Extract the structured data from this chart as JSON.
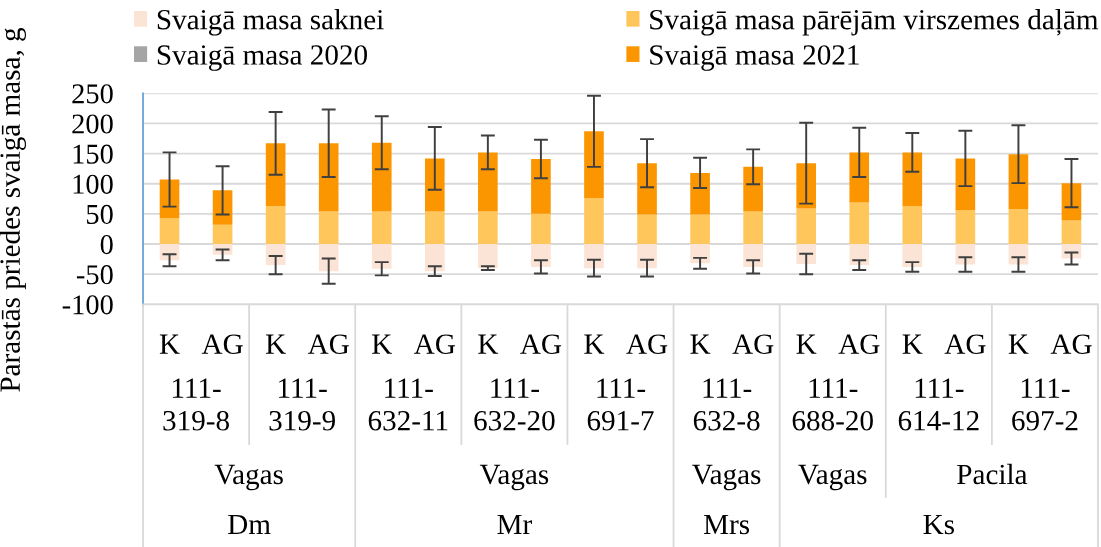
{
  "chart_data": {
    "type": "bar",
    "stacked": true,
    "ylabel": "Parastās priedes svaigā masa, g",
    "categories": [
      "K",
      "AG",
      "K",
      "AG",
      "K",
      "AG",
      "K",
      "AG",
      "K",
      "AG",
      "K",
      "AG",
      "K",
      "AG",
      "K",
      "AG",
      "K",
      "AG"
    ],
    "series": [
      {
        "name": "Svaigā masa saknei",
        "color": "#fbe4d5",
        "values": [
          -27,
          -18,
          -35,
          -45,
          -41,
          -45,
          -40,
          -38,
          -40,
          -40,
          -32,
          -38,
          -33,
          -35,
          -38,
          -34,
          -34,
          -24
        ],
        "errors": [
          10,
          9,
          15,
          21,
          11,
          8,
          3,
          11,
          14,
          14,
          9,
          11,
          17,
          8,
          8,
          12,
          12,
          10
        ]
      },
      {
        "name": "Svaigā masa pārējām virszemes daļām",
        "color": "#ffc65c",
        "values": [
          43,
          32,
          63,
          54,
          54,
          54,
          54,
          50,
          76,
          49,
          49,
          54,
          59,
          69,
          63,
          56,
          58,
          39
        ]
      },
      {
        "name": "Svaigā masa 2020",
        "color": "#a5a5a5",
        "values": [
          null,
          null,
          null,
          null,
          null,
          null,
          null,
          null,
          null,
          null,
          null,
          null,
          null,
          null,
          null,
          null,
          null,
          null
        ]
      },
      {
        "name": "Svaigā masa 2021",
        "color": "#fb9600",
        "values": [
          64,
          57,
          104,
          113,
          114,
          88,
          98,
          91,
          111,
          85,
          69,
          74,
          75,
          83,
          89,
          86,
          91,
          62
        ],
        "errors": [
          45,
          40,
          52,
          56,
          44,
          52,
          28,
          32,
          59,
          40,
          25,
          29,
          67,
          41,
          32,
          46,
          48,
          40
        ]
      }
    ],
    "ylim": [
      -100,
      250
    ],
    "yticks": [
      -100,
      -50,
      0,
      50,
      100,
      150,
      200,
      250
    ],
    "grid": "y",
    "legend": "top",
    "annotations": [
      "111-\n319-8",
      "111-\n319-9",
      "111-\n632-11",
      "111-\n632-20",
      "111-\n691-7",
      "111-\n632-8",
      "111-\n688-20",
      "111-\n614-12",
      "111-\n697-2",
      "Vagas",
      "Vagas",
      "Vagas",
      "Vagas",
      "Pacila",
      "Dm",
      "Mr",
      "Mrs",
      "Ks"
    ]
  }
}
